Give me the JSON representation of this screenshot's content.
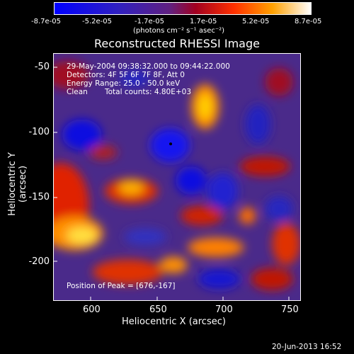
{
  "colorbar": {
    "ticks": [
      "-8.7e-05",
      "-5.2e-05",
      "-1.7e-05",
      "1.7e-05",
      "5.2e-05",
      "8.7e-05"
    ],
    "units": "(photons cm⁻² s⁻¹ asec⁻²)"
  },
  "title": "Reconstructed RHESSI Image",
  "overlay": {
    "time_range": "29-May-2004 09:38:32.000 to 09:44:22.000",
    "detectors": "Detectors: 4F 5F 6F 7F 8F, Att 0",
    "energy": "Energy Range: 25.0 - 50.0 keV",
    "clean": "Clean",
    "total_counts": "Total counts: 4.80E+03",
    "peak": "Position of Peak = [676,-167]"
  },
  "axes": {
    "xlabel": "Heliocentric X (arcsec)",
    "ylabel": "Heliocentric Y (arcsec)",
    "xticks": [
      "600",
      "650",
      "700",
      "750"
    ],
    "yticks": [
      "-50",
      "-100",
      "-150",
      "-200"
    ]
  },
  "footer": {
    "date": "20-Jun-2013 16:52"
  }
}
